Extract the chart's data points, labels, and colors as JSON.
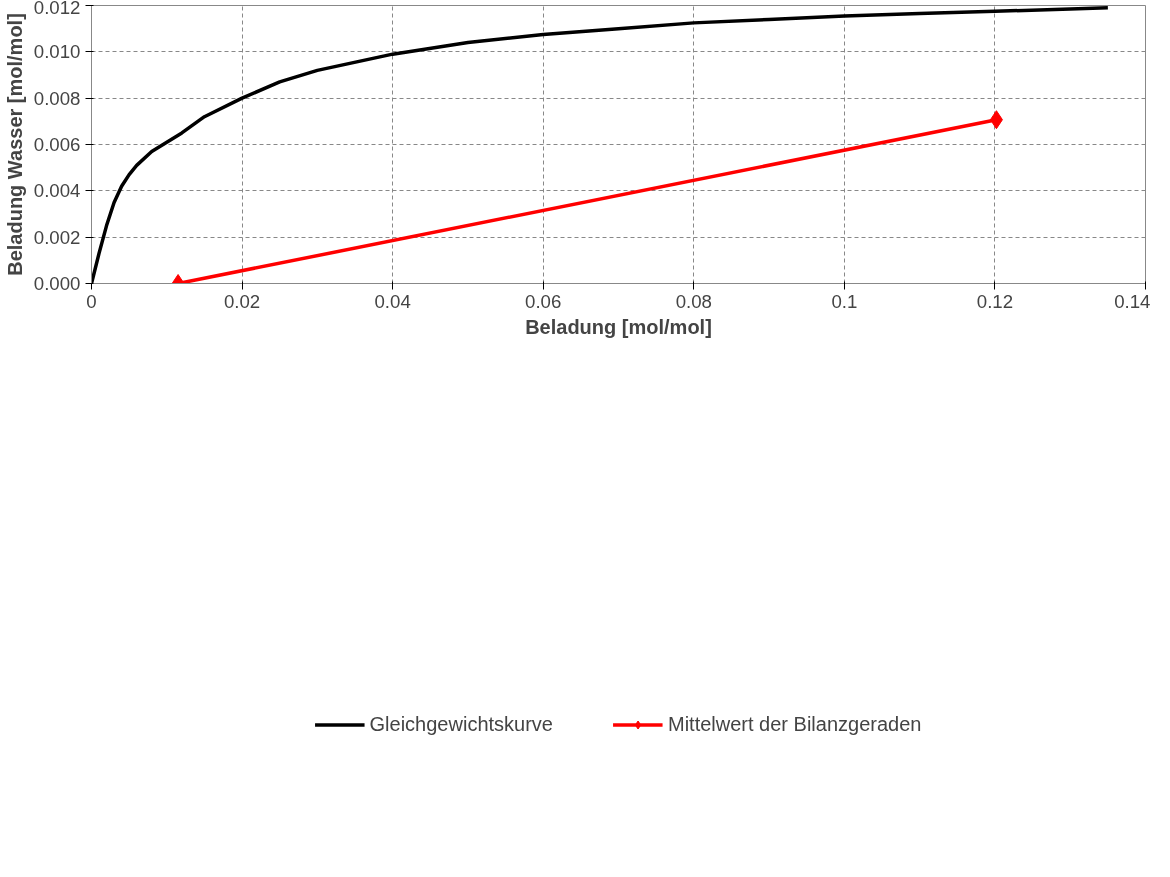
{
  "chart_data": {
    "type": "line",
    "xlabel": "Beladung [mol/mol]",
    "ylabel": "Beladung Wasser [mol/mol]",
    "xlim": [
      0,
      0.14
    ],
    "xticks": [
      0,
      {
        "value": 0.02,
        "label": "0.02"
      },
      {
        "value": 0.04,
        "label": "0.04"
      },
      {
        "value": 0.06,
        "label": "0.06"
      },
      {
        "value": 0.08,
        "label": "0.08"
      },
      {
        "value": 0.1,
        "label": "0.1"
      },
      {
        "value": 0.12,
        "label": "0.12"
      },
      {
        "value": 0.14,
        "label": "0.14"
      }
    ],
    "ylim": [
      0,
      0.012
    ],
    "yticks": [
      {
        "value": 0,
        "label": "0.000"
      },
      {
        "value": 0.002,
        "label": "0.002"
      },
      {
        "value": 0.004,
        "label": "0.004"
      },
      {
        "value": 0.006,
        "label": "0.006"
      },
      {
        "value": 0.008,
        "label": "0.008"
      },
      {
        "value": 0.01,
        "label": "0.010"
      },
      {
        "value": 0.012,
        "label": "0.012"
      }
    ],
    "grid": true,
    "legend": "bottom",
    "line_style": "solid",
    "series": [
      {
        "name": "Gleichgewichtskurve",
        "color": "#000000",
        "marker": "none",
        "x": [
          0,
          0.001,
          0.002,
          0.003,
          0.004,
          0.005,
          0.006,
          0.008,
          0.01,
          0.012,
          0.015,
          0.02,
          0.025,
          0.03,
          0.04,
          0.05,
          0.06,
          0.07,
          0.08,
          0.09,
          0.1,
          0.11,
          0.12,
          0.13,
          0.135
        ],
        "values": [
          0,
          0.0013,
          0.0025,
          0.0035,
          0.0042,
          0.0047,
          0.0051,
          0.0057,
          0.0061,
          0.0065,
          0.0072,
          0.008,
          0.0087,
          0.0092,
          0.0099,
          0.0104,
          0.01075,
          0.011,
          0.01125,
          0.0114,
          0.01155,
          0.01165,
          0.01175,
          0.01185,
          0.0119
        ]
      },
      {
        "name": "Mittelwert der Bilanzgeraden",
        "color": "#ff0000",
        "marker": "diamond",
        "x": [
          0.0115,
          0.1202
        ],
        "values": [
          0,
          0.00707
        ]
      }
    ]
  }
}
